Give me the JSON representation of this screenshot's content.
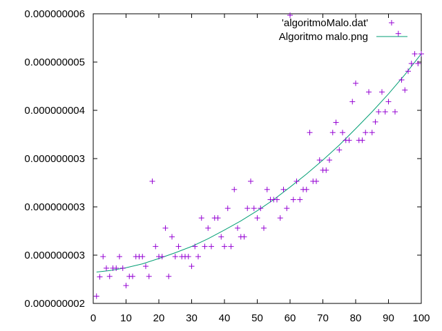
{
  "chart_data": {
    "type": "scatter",
    "title": "",
    "xlabel": "",
    "ylabel": "",
    "xlim": [
      0,
      100
    ],
    "ylim": [
      0,
      6
    ],
    "x_ticks": [
      0,
      10,
      20,
      30,
      40,
      50,
      60,
      70,
      80,
      90,
      100
    ],
    "y_ticks": [
      {
        "value": 0,
        "label": "0.000000002"
      },
      {
        "value": 1,
        "label": "0.000000003"
      },
      {
        "value": 2,
        "label": "0.000000003"
      },
      {
        "value": 3,
        "label": "0.000000003"
      },
      {
        "value": 4,
        "label": "0.000000004"
      },
      {
        "value": 5,
        "label": "0.000000005"
      },
      {
        "value": 6,
        "label": "0.000000006"
      }
    ],
    "grid": false,
    "legend_position": "top-right",
    "series": [
      {
        "name": "'algoritmoMalo.dat'",
        "kind": "points",
        "marker": "plus",
        "color": "#9400d3",
        "points": [
          [
            1,
            0.15
          ],
          [
            2,
            0.55
          ],
          [
            3,
            0.97
          ],
          [
            4,
            0.73
          ],
          [
            5,
            0.56
          ],
          [
            6,
            0.73
          ],
          [
            7,
            0.73
          ],
          [
            8,
            0.97
          ],
          [
            9,
            0.73
          ],
          [
            10,
            0.37
          ],
          [
            11,
            0.56
          ],
          [
            12,
            0.56
          ],
          [
            13,
            0.97
          ],
          [
            14,
            0.97
          ],
          [
            15,
            0.97
          ],
          [
            16,
            0.77
          ],
          [
            17,
            0.56
          ],
          [
            18,
            2.53
          ],
          [
            19,
            1.18
          ],
          [
            20,
            0.97
          ],
          [
            21,
            0.97
          ],
          [
            22,
            1.56
          ],
          [
            23,
            0.56
          ],
          [
            24,
            1.38
          ],
          [
            25,
            0.97
          ],
          [
            26,
            1.18
          ],
          [
            27,
            0.97
          ],
          [
            28,
            0.97
          ],
          [
            29,
            0.97
          ],
          [
            30,
            0.77
          ],
          [
            31,
            1.18
          ],
          [
            32,
            0.97
          ],
          [
            33,
            1.77
          ],
          [
            34,
            1.18
          ],
          [
            35,
            1.56
          ],
          [
            36,
            1.18
          ],
          [
            37,
            1.77
          ],
          [
            38,
            1.77
          ],
          [
            39,
            1.38
          ],
          [
            40,
            1.18
          ],
          [
            41,
            1.97
          ],
          [
            42,
            1.18
          ],
          [
            43,
            2.36
          ],
          [
            44,
            1.56
          ],
          [
            45,
            1.38
          ],
          [
            46,
            1.38
          ],
          [
            47,
            1.97
          ],
          [
            48,
            2.53
          ],
          [
            49,
            1.97
          ],
          [
            50,
            1.77
          ],
          [
            51,
            1.97
          ],
          [
            52,
            1.56
          ],
          [
            53,
            2.36
          ],
          [
            54,
            2.15
          ],
          [
            55,
            2.15
          ],
          [
            56,
            2.15
          ],
          [
            57,
            1.77
          ],
          [
            58,
            2.36
          ],
          [
            59,
            1.97
          ],
          [
            60,
            5.97
          ],
          [
            61,
            2.15
          ],
          [
            62,
            2.53
          ],
          [
            63,
            2.15
          ],
          [
            64,
            2.36
          ],
          [
            65,
            2.36
          ],
          [
            66,
            3.54
          ],
          [
            67,
            2.53
          ],
          [
            68,
            2.53
          ],
          [
            69,
            2.97
          ],
          [
            70,
            2.76
          ],
          [
            71,
            2.76
          ],
          [
            72,
            2.97
          ],
          [
            73,
            3.54
          ],
          [
            74,
            3.75
          ],
          [
            75,
            3.18
          ],
          [
            76,
            3.54
          ],
          [
            77,
            3.38
          ],
          [
            78,
            3.38
          ],
          [
            79,
            4.18
          ],
          [
            80,
            4.56
          ],
          [
            81,
            3.38
          ],
          [
            82,
            3.38
          ],
          [
            83,
            3.54
          ],
          [
            84,
            4.38
          ],
          [
            85,
            3.54
          ],
          [
            86,
            3.76
          ],
          [
            87,
            3.97
          ],
          [
            88,
            4.38
          ],
          [
            89,
            3.97
          ],
          [
            90,
            4.18
          ],
          [
            91,
            6.36
          ],
          [
            92,
            3.97
          ],
          [
            93,
            5.59
          ],
          [
            94,
            4.63
          ],
          [
            95,
            4.42
          ],
          [
            96,
            4.81
          ],
          [
            97,
            4.97
          ],
          [
            98,
            5.17
          ],
          [
            99,
            4.97
          ],
          [
            100,
            5.17
          ]
        ]
      },
      {
        "name": "Algoritmo malo.png",
        "kind": "line",
        "color": "#009e73",
        "points": [
          [
            1,
            0.65
          ],
          [
            5,
            0.68
          ],
          [
            10,
            0.74
          ],
          [
            15,
            0.82
          ],
          [
            20,
            0.93
          ],
          [
            25,
            1.05
          ],
          [
            30,
            1.18
          ],
          [
            35,
            1.34
          ],
          [
            40,
            1.52
          ],
          [
            45,
            1.71
          ],
          [
            50,
            1.92
          ],
          [
            55,
            2.15
          ],
          [
            60,
            2.41
          ],
          [
            65,
            2.68
          ],
          [
            70,
            2.97
          ],
          [
            75,
            3.28
          ],
          [
            80,
            3.62
          ],
          [
            85,
            3.97
          ],
          [
            90,
            4.34
          ],
          [
            95,
            4.74
          ],
          [
            100,
            5.17
          ]
        ]
      }
    ]
  }
}
